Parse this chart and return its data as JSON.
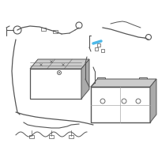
{
  "background_color": "#ffffff",
  "title": "",
  "fig_size": [
    2.0,
    2.0
  ],
  "dpi": 100,
  "highlight_color": "#4db8e8",
  "line_color": "#555555",
  "light_gray": "#aaaaaa",
  "dark_gray": "#666666",
  "very_light_gray": "#cccccc"
}
